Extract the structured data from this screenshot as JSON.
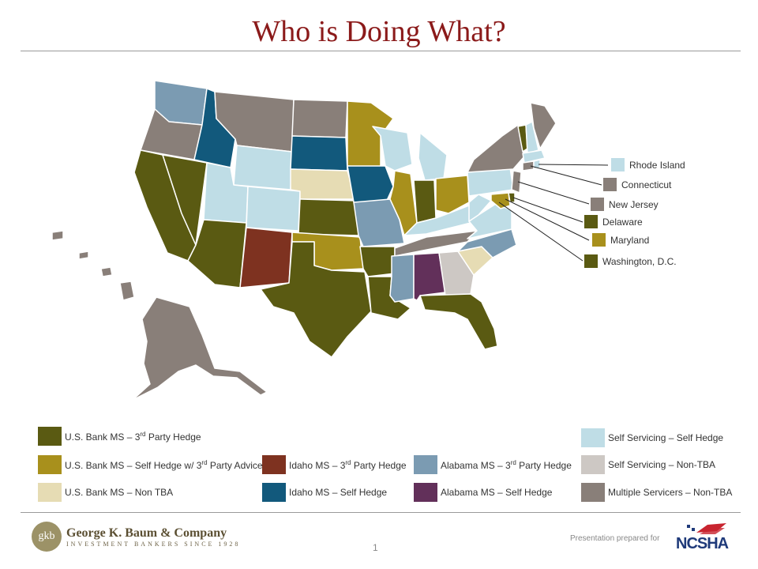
{
  "title": "Who is Doing What?",
  "colors": {
    "usbank_3rd": "#5a5a12",
    "usbank_self": "#a8901c",
    "usbank_nontba": "#e6dcb4",
    "idaho_3rd": "#7e3220",
    "idaho_self": "#12597c",
    "alabama_3rd": "#7b9bb2",
    "alabama_self": "#62305a",
    "self_self": "#bfdde6",
    "self_nontba": "#cdc8c4",
    "multi_nontba": "#897f79"
  },
  "legend": [
    {
      "key": "usbank_3rd",
      "label": "U.S. Bank MS – 3rd Party Hedge"
    },
    {
      "key": "usbank_self",
      "label": "U.S. Bank MS – Self Hedge w/ 3rd Party Advice"
    },
    {
      "key": "usbank_nontba",
      "label": "U.S. Bank MS – Non TBA"
    },
    {
      "key": "idaho_3rd",
      "label": "Idaho MS – 3rd Party Hedge"
    },
    {
      "key": "idaho_self",
      "label": "Idaho MS – Self Hedge"
    },
    {
      "key": "alabama_3rd",
      "label": "Alabama MS – 3rd Party Hedge"
    },
    {
      "key": "alabama_self",
      "label": "Alabama MS – Self Hedge"
    },
    {
      "key": "self_self",
      "label": "Self Servicing – Self Hedge"
    },
    {
      "key": "self_nontba",
      "label": "Self Servicing – Non-TBA"
    },
    {
      "key": "multi_nontba",
      "label": "Multiple Servicers – Non-TBA"
    }
  ],
  "callouts": [
    {
      "label": "Rhode Island",
      "key": "self_self"
    },
    {
      "label": "Connecticut",
      "key": "multi_nontba"
    },
    {
      "label": "New Jersey",
      "key": "multi_nontba"
    },
    {
      "label": "Delaware",
      "key": "usbank_3rd"
    },
    {
      "label": "Maryland",
      "key": "usbank_self"
    },
    {
      "label": "Washington, D.C.",
      "key": "usbank_3rd"
    }
  ],
  "footer": {
    "logo_mark": "gkb",
    "company": "George K. Baum & Company",
    "tagline": "INVESTMENT BANKERS SINCE 1928",
    "page_number": "1",
    "prepared_for": "Presentation prepared for",
    "client_logo": "NCSHA"
  }
}
